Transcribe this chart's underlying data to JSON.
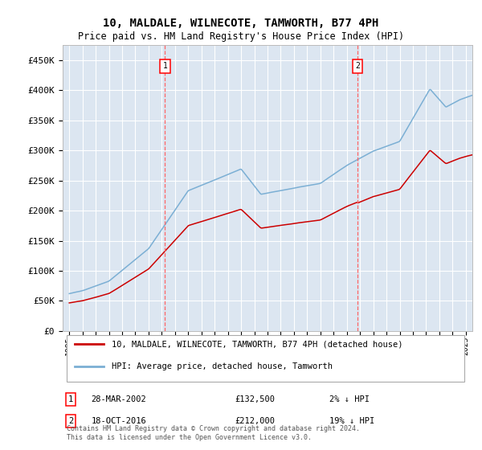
{
  "title": "10, MALDALE, WILNECOTE, TAMWORTH, B77 4PH",
  "subtitle": "Price paid vs. HM Land Registry's House Price Index (HPI)",
  "ylabel_ticks": [
    "£0",
    "£50K",
    "£100K",
    "£150K",
    "£200K",
    "£250K",
    "£300K",
    "£350K",
    "£400K",
    "£450K"
  ],
  "ytick_values": [
    0,
    50000,
    100000,
    150000,
    200000,
    250000,
    300000,
    350000,
    400000,
    450000
  ],
  "ylim": [
    0,
    475000
  ],
  "xlim_start": 1994.5,
  "xlim_end": 2025.5,
  "plot_bg_color": "#dce6f1",
  "grid_color": "#ffffff",
  "hpi_line_color": "#7bafd4",
  "sale_line_color": "#cc0000",
  "vline_color": "#ff6666",
  "marker1_x": 2002.24,
  "marker2_x": 2016.8,
  "marker1_label": "28-MAR-2002",
  "marker1_price": "£132,500",
  "marker1_hpi": "2% ↓ HPI",
  "marker2_label": "18-OCT-2016",
  "marker2_price": "£212,000",
  "marker2_hpi": "19% ↓ HPI",
  "legend_line1": "10, MALDALE, WILNECOTE, TAMWORTH, B77 4PH (detached house)",
  "legend_line2": "HPI: Average price, detached house, Tamworth",
  "footer": "Contains HM Land Registry data © Crown copyright and database right 2024.\nThis data is licensed under the Open Government Licence v3.0.",
  "xtick_years": [
    1995,
    1996,
    1997,
    1998,
    1999,
    2000,
    2001,
    2002,
    2003,
    2004,
    2005,
    2006,
    2007,
    2008,
    2009,
    2010,
    2011,
    2012,
    2013,
    2014,
    2015,
    2016,
    2017,
    2018,
    2019,
    2020,
    2021,
    2022,
    2023,
    2024,
    2025
  ]
}
